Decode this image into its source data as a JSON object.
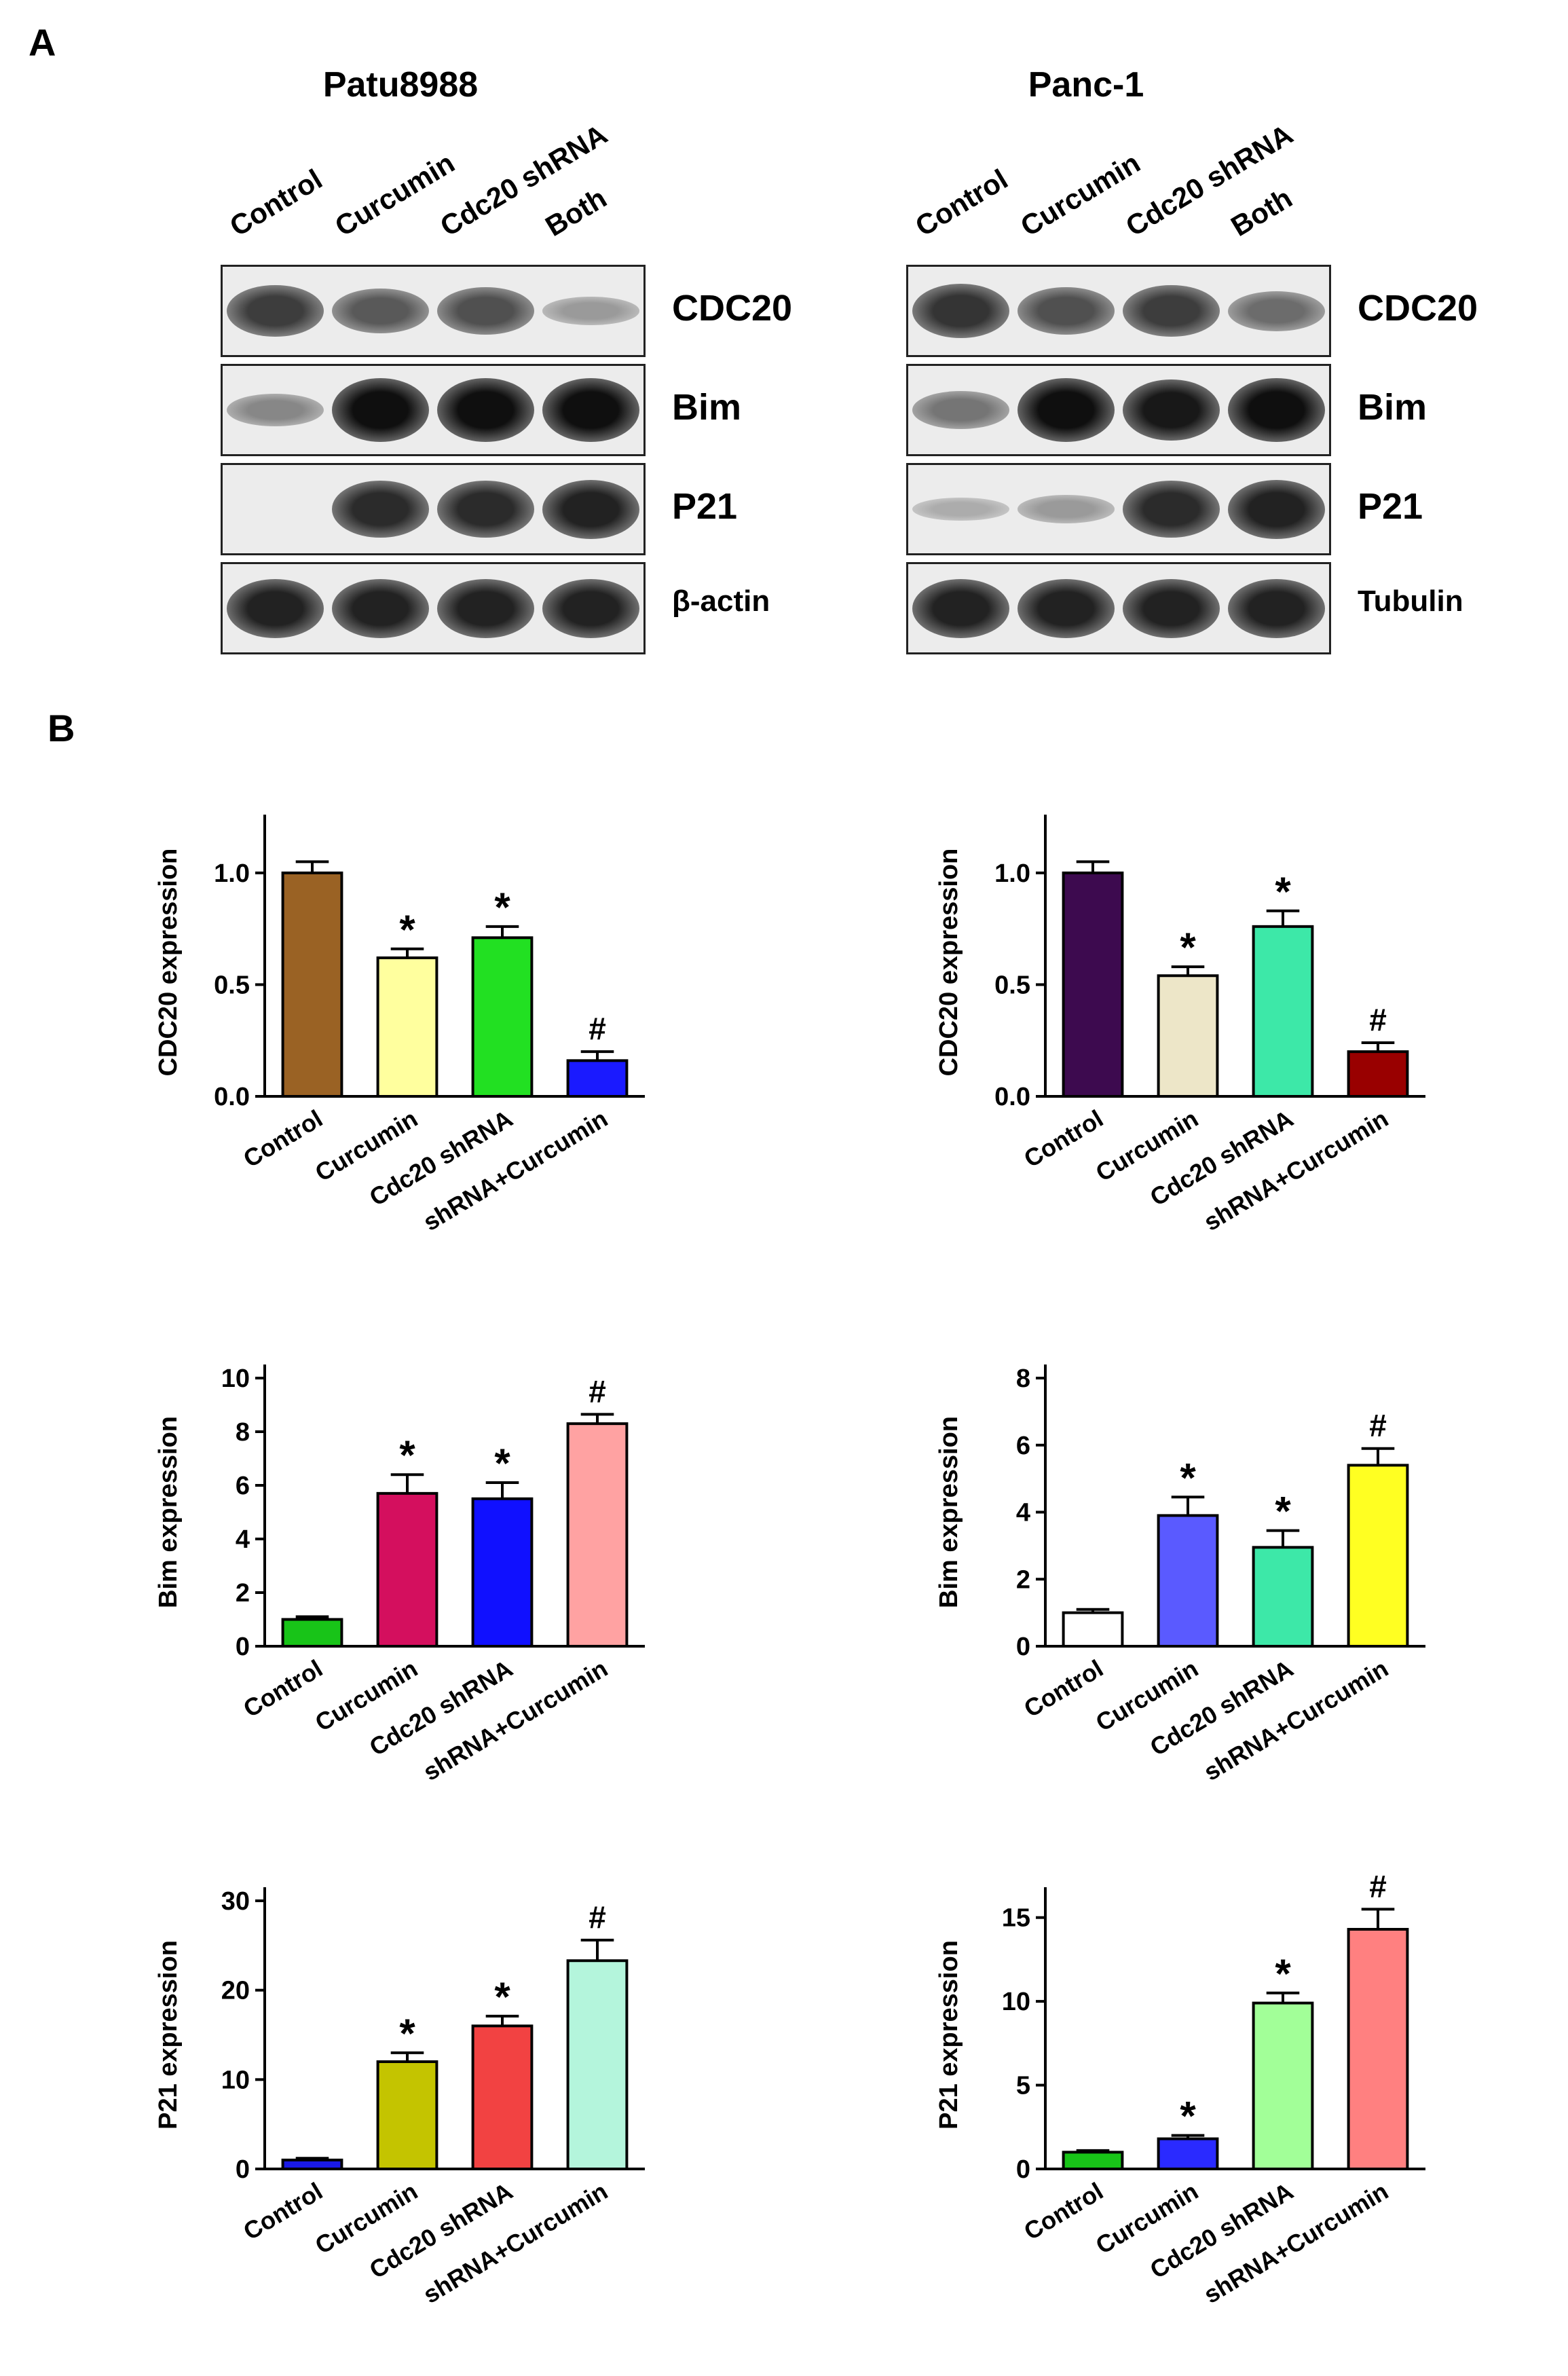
{
  "panel_labels": [
    "A",
    "B"
  ],
  "blots": [
    {
      "cell_line": "Patu8988",
      "lanes": [
        "Control",
        "Curcumin",
        "Cdc20 shRNA",
        "Both"
      ],
      "rows": [
        {
          "protein": "CDC20",
          "intensity": [
            0.75,
            0.6,
            0.65,
            0.25
          ]
        },
        {
          "protein": "Bim",
          "intensity": [
            0.35,
            1.0,
            1.0,
            1.0
          ]
        },
        {
          "protein": "P21",
          "intensity": [
            0.0,
            0.85,
            0.85,
            0.9
          ]
        },
        {
          "protein": "β-actin",
          "intensity": [
            0.9,
            0.9,
            0.9,
            0.9
          ]
        }
      ]
    },
    {
      "cell_line": "Panc-1",
      "lanes": [
        "Control",
        "Curcumin",
        "Cdc20 shRNA",
        "Both"
      ],
      "rows": [
        {
          "protein": "CDC20",
          "intensity": [
            0.8,
            0.65,
            0.75,
            0.5
          ]
        },
        {
          "protein": "Bim",
          "intensity": [
            0.45,
            1.0,
            0.95,
            1.0
          ]
        },
        {
          "protein": "P21",
          "intensity": [
            0.15,
            0.25,
            0.85,
            0.9
          ]
        },
        {
          "protein": "Tubulin",
          "intensity": [
            0.9,
            0.9,
            0.9,
            0.9
          ]
        }
      ]
    }
  ],
  "chart_data": [
    {
      "type": "bar",
      "ylabel": "CDC20 expression",
      "categories": [
        "Control",
        "Curcumin",
        "Cdc20 shRNA",
        "shRNA+Curcumin"
      ],
      "values": [
        1.0,
        0.62,
        0.71,
        0.16
      ],
      "errors": [
        0.05,
        0.04,
        0.05,
        0.04
      ],
      "annotations": [
        "",
        "*",
        "*",
        "#"
      ],
      "colors": [
        "#9a6224",
        "#ffff9e",
        "#22e022",
        "#1a1aff"
      ],
      "ylim": [
        0,
        1.2
      ],
      "yticks": [
        "0.0",
        "0.5",
        "1.0"
      ]
    },
    {
      "type": "bar",
      "ylabel": "CDC20 expression",
      "categories": [
        "Control",
        "Curcumin",
        "Cdc20 shRNA",
        "shRNA+Curcumin"
      ],
      "values": [
        1.0,
        0.54,
        0.76,
        0.2
      ],
      "errors": [
        0.05,
        0.04,
        0.07,
        0.04
      ],
      "annotations": [
        "",
        "*",
        "*",
        "#"
      ],
      "colors": [
        "#3d0a4f",
        "#ede6c8",
        "#3de8a8",
        "#990000"
      ],
      "ylim": [
        0,
        1.2
      ],
      "yticks": [
        "0.0",
        "0.5",
        "1.0"
      ]
    },
    {
      "type": "bar",
      "ylabel": "Bim expression",
      "categories": [
        "Control",
        "Curcumin",
        "Cdc20 shRNA",
        "shRNA+Curcumin"
      ],
      "values": [
        1.0,
        5.7,
        5.5,
        8.3
      ],
      "errors": [
        0.1,
        0.7,
        0.6,
        0.35
      ],
      "annotations": [
        "",
        "*",
        "*",
        "#"
      ],
      "colors": [
        "#18c418",
        "#d40f5e",
        "#1010ff",
        "#ffa2a2"
      ],
      "ylim": [
        0,
        10
      ],
      "yticks": [
        "0",
        "2",
        "4",
        "6",
        "8",
        "10"
      ]
    },
    {
      "type": "bar",
      "ylabel": "Bim expression",
      "categories": [
        "Control",
        "Curcumin",
        "Cdc20 shRNA",
        "shRNA+Curcumin"
      ],
      "values": [
        1.0,
        3.9,
        2.95,
        5.4
      ],
      "errors": [
        0.1,
        0.55,
        0.5,
        0.5
      ],
      "annotations": [
        "",
        "*",
        "*",
        "#"
      ],
      "colors": [
        "#ffffff",
        "#5a5aff",
        "#3de8a8",
        "#ffff22"
      ],
      "ylim": [
        0,
        8
      ],
      "yticks": [
        "0",
        "2",
        "4",
        "6",
        "8"
      ]
    },
    {
      "type": "bar",
      "ylabel": "P21 expression",
      "categories": [
        "Control",
        "Curcumin",
        "Cdc20 shRNA",
        "shRNA+Curcumin"
      ],
      "values": [
        1.0,
        12.0,
        16.0,
        23.3
      ],
      "errors": [
        0.2,
        1.0,
        1.1,
        2.3
      ],
      "annotations": [
        "",
        "*",
        "*",
        "#"
      ],
      "colors": [
        "#1a1ae6",
        "#c4c400",
        "#f24242",
        "#b4f5dc"
      ],
      "ylim": [
        0,
        30
      ],
      "yticks": [
        "0",
        "10",
        "20",
        "30"
      ]
    },
    {
      "type": "bar",
      "ylabel": "P21 expression",
      "categories": [
        "Control",
        "Curcumin",
        "Cdc20 shRNA",
        "shRNA+Curcumin"
      ],
      "values": [
        1.0,
        1.8,
        9.9,
        14.3
      ],
      "errors": [
        0.1,
        0.2,
        0.6,
        1.2
      ],
      "annotations": [
        "",
        "*",
        "*",
        "#"
      ],
      "colors": [
        "#18c418",
        "#2a2aff",
        "#a2ff98",
        "#ff8080"
      ],
      "ylim": [
        0,
        16
      ],
      "yticks": [
        "0",
        "5",
        "10",
        "15"
      ]
    }
  ]
}
